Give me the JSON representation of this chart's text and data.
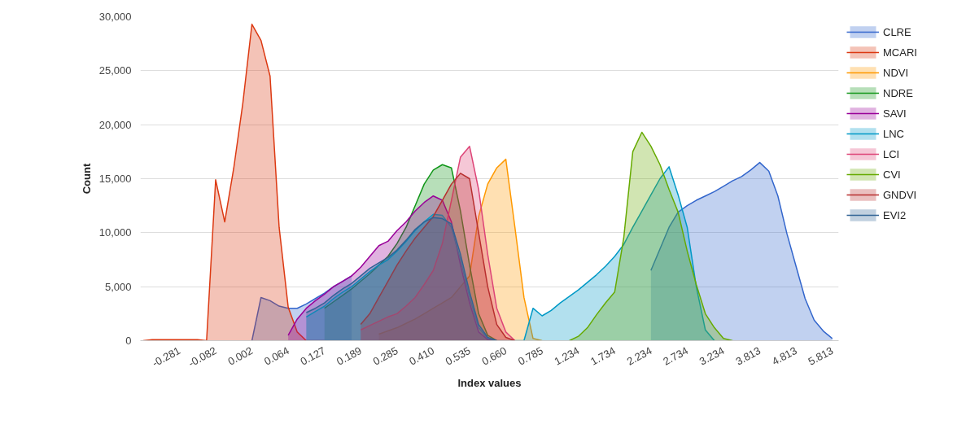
{
  "chart_data": {
    "type": "area",
    "xlabel": "Index values",
    "ylabel": "Count",
    "categories": [
      null,
      null,
      null,
      null,
      "-0.281",
      null,
      null,
      null,
      "-0.082",
      null,
      null,
      null,
      "0.002",
      null,
      null,
      null,
      "0.064",
      null,
      null,
      null,
      "0.127",
      null,
      null,
      null,
      "0.189",
      null,
      null,
      null,
      "0.285",
      null,
      null,
      null,
      "0.410",
      null,
      null,
      null,
      "0.535",
      null,
      null,
      null,
      "0.660",
      null,
      null,
      null,
      "0.785",
      null,
      null,
      null,
      "1.234",
      null,
      null,
      null,
      "1.734",
      null,
      null,
      null,
      "2.234",
      null,
      null,
      null,
      "2.734",
      null,
      null,
      null,
      "3.234",
      null,
      null,
      null,
      "3.813",
      null,
      null,
      null,
      "4.813",
      null,
      null,
      null,
      "5.813"
    ],
    "ylim": [
      0,
      30000
    ],
    "yticks": [
      0,
      {
        "value": 5000,
        "label": "5,000"
      },
      {
        "value": 10000,
        "label": "10,000"
      },
      {
        "value": 15000,
        "label": "15,000"
      },
      {
        "value": 20000,
        "label": "20,000"
      },
      {
        "value": 25000,
        "label": "25,000"
      },
      {
        "value": 30000,
        "label": "30,000"
      }
    ],
    "grid": "y",
    "legend": "right",
    "series": [
      {
        "name": "CLRE",
        "color": "#3366cc",
        "values": [
          null,
          null,
          null,
          null,
          null,
          null,
          null,
          null,
          null,
          null,
          null,
          null,
          0,
          4000,
          3700,
          3200,
          3000,
          3000,
          3400,
          3900,
          4400,
          5000,
          5500,
          6000,
          null,
          null,
          null,
          null,
          null,
          null,
          null,
          null,
          null,
          null,
          null,
          null,
          null,
          null,
          null,
          null,
          null,
          null,
          null,
          null,
          null,
          null,
          null,
          null,
          null,
          null,
          null,
          null,
          null,
          null,
          null,
          null,
          6500,
          8500,
          10500,
          11900,
          12500,
          13000,
          13400,
          13800,
          14300,
          14800,
          15200,
          15800,
          16500,
          15700,
          13400,
          9900,
          6900,
          3900,
          1900,
          900,
          200
        ]
      },
      {
        "name": "MCARI",
        "color": "#dc3912",
        "values": [
          0,
          100,
          100,
          100,
          100,
          100,
          100,
          0,
          14900,
          11000,
          16000,
          22000,
          29300,
          27800,
          24500,
          10500,
          3100,
          800,
          0,
          0,
          0,
          null,
          null,
          null,
          null,
          null,
          null,
          null,
          null,
          null,
          null,
          null,
          null,
          null,
          null,
          null,
          null,
          null,
          null,
          null,
          null,
          null,
          null,
          null,
          null,
          null,
          null,
          null,
          null,
          null,
          null,
          null,
          null,
          null,
          null,
          null,
          null,
          null,
          null,
          null,
          null,
          null,
          null,
          null,
          null,
          null,
          null,
          null,
          null,
          null,
          null,
          null,
          null,
          null,
          null,
          null,
          null
        ]
      },
      {
        "name": "NDVI",
        "color": "#ff9900",
        "values": [
          null,
          null,
          null,
          null,
          null,
          null,
          null,
          null,
          null,
          null,
          null,
          null,
          null,
          null,
          null,
          null,
          null,
          null,
          null,
          null,
          null,
          null,
          null,
          null,
          null,
          null,
          600,
          900,
          1200,
          1600,
          2000,
          2500,
          3000,
          3500,
          4000,
          5000,
          6000,
          11500,
          14500,
          16000,
          16800,
          10500,
          4000,
          200,
          0,
          null,
          null,
          null,
          null,
          null,
          null,
          null,
          null,
          null,
          null,
          null,
          null,
          null,
          null,
          null,
          null,
          null,
          null,
          null,
          null,
          null,
          null,
          null,
          null,
          null,
          null,
          null,
          null,
          null,
          null,
          null,
          null
        ]
      },
      {
        "name": "NDRE",
        "color": "#109618",
        "values": [
          null,
          null,
          null,
          null,
          null,
          null,
          null,
          null,
          null,
          null,
          null,
          null,
          null,
          null,
          null,
          null,
          null,
          null,
          null,
          null,
          3000,
          3600,
          4200,
          4800,
          5500,
          6200,
          7000,
          7800,
          9000,
          10500,
          12500,
          14500,
          15800,
          16300,
          16000,
          12000,
          7000,
          2500,
          500,
          0,
          null,
          null,
          null,
          null,
          null,
          null,
          null,
          null,
          null,
          null,
          null,
          null,
          null,
          null,
          null,
          null,
          null,
          null,
          null,
          null,
          null,
          null,
          null,
          null,
          null,
          null,
          null,
          null,
          null,
          null,
          null,
          null,
          null,
          null,
          null,
          null,
          null
        ]
      },
      {
        "name": "SAVI",
        "color": "#990099",
        "values": [
          null,
          null,
          null,
          null,
          null,
          null,
          null,
          null,
          null,
          null,
          null,
          null,
          null,
          null,
          null,
          null,
          500,
          2000,
          3000,
          3700,
          4300,
          5000,
          5500,
          6000,
          6800,
          7800,
          8800,
          9200,
          10200,
          11000,
          12000,
          12800,
          13400,
          13000,
          11000,
          7000,
          3500,
          800,
          100,
          0,
          null,
          null,
          null,
          null,
          null,
          null,
          null,
          null,
          null,
          null,
          null,
          null,
          null,
          null,
          null,
          null,
          null,
          null,
          null,
          null,
          null,
          null,
          null,
          null,
          null,
          null,
          null,
          null,
          null,
          null,
          null,
          null,
          null,
          null,
          null,
          null,
          null
        ]
      },
      {
        "name": "LNC",
        "color": "#0099c6",
        "values": [
          null,
          null,
          null,
          null,
          null,
          null,
          null,
          null,
          null,
          null,
          null,
          null,
          null,
          null,
          null,
          null,
          null,
          null,
          2200,
          2700,
          3200,
          3900,
          4500,
          5000,
          5700,
          6400,
          7000,
          7500,
          8300,
          9200,
          10200,
          11000,
          11700,
          11600,
          10500,
          7500,
          4000,
          1200,
          200,
          0,
          0,
          0,
          0,
          3000,
          2300,
          2800,
          3500,
          4100,
          4700,
          5400,
          6100,
          6900,
          7800,
          8900,
          10500,
          12000,
          13500,
          15000,
          16100,
          13500,
          10500,
          5000,
          1000,
          0,
          null,
          null,
          null,
          null,
          null,
          null,
          null,
          null,
          null,
          null,
          null,
          null,
          null
        ]
      },
      {
        "name": "LCI",
        "color": "#dd4477",
        "values": [
          null,
          null,
          null,
          null,
          null,
          null,
          null,
          null,
          null,
          null,
          null,
          null,
          null,
          null,
          null,
          null,
          null,
          null,
          null,
          null,
          null,
          null,
          null,
          null,
          1000,
          1400,
          1800,
          2200,
          2500,
          3200,
          4000,
          5200,
          6500,
          9000,
          13000,
          17000,
          18000,
          14000,
          8000,
          3000,
          800,
          0,
          null,
          null,
          null,
          null,
          null,
          null,
          null,
          null,
          null,
          null,
          null,
          null,
          null,
          null,
          null,
          null,
          null,
          null,
          null,
          null,
          null,
          null,
          null,
          null,
          null,
          null,
          null,
          null,
          null,
          null,
          null,
          null,
          null,
          null,
          null
        ]
      },
      {
        "name": "CVI",
        "color": "#66aa00",
        "values": [
          null,
          null,
          null,
          null,
          null,
          null,
          null,
          null,
          null,
          null,
          null,
          null,
          null,
          null,
          null,
          null,
          null,
          null,
          null,
          null,
          null,
          null,
          null,
          null,
          null,
          null,
          null,
          null,
          null,
          null,
          null,
          null,
          null,
          null,
          null,
          null,
          null,
          null,
          null,
          null,
          null,
          null,
          null,
          null,
          null,
          null,
          null,
          0,
          400,
          1200,
          2400,
          3500,
          4500,
          9500,
          17500,
          19300,
          18000,
          16300,
          14000,
          11900,
          8300,
          5200,
          2500,
          1200,
          200,
          0,
          null,
          null,
          null,
          null,
          null,
          null,
          null,
          null,
          null,
          null,
          null
        ]
      },
      {
        "name": "GNDVI",
        "color": "#b82e2e",
        "values": [
          null,
          null,
          null,
          null,
          null,
          null,
          null,
          null,
          null,
          null,
          null,
          null,
          null,
          null,
          null,
          null,
          null,
          null,
          null,
          null,
          null,
          null,
          null,
          null,
          1500,
          2500,
          4000,
          5500,
          7000,
          8300,
          9500,
          10500,
          11500,
          13000,
          14500,
          15500,
          15000,
          10000,
          5000,
          1500,
          300,
          0,
          null,
          null,
          null,
          null,
          null,
          null,
          null,
          null,
          null,
          null,
          null,
          null,
          null,
          null,
          null,
          null,
          null,
          null,
          null,
          null,
          null,
          null,
          null,
          null,
          null,
          null,
          null,
          null,
          null,
          null,
          null,
          null,
          null,
          null,
          null
        ]
      },
      {
        "name": "EVI2",
        "color": "#316395",
        "values": [
          null,
          null,
          null,
          null,
          null,
          null,
          null,
          null,
          null,
          null,
          null,
          null,
          null,
          null,
          null,
          null,
          null,
          null,
          2600,
          3000,
          3500,
          4200,
          4800,
          5300,
          6000,
          6700,
          7200,
          7700,
          8400,
          9300,
          10300,
          11000,
          11400,
          11300,
          10800,
          8000,
          4500,
          1500,
          300,
          0,
          null,
          null,
          null,
          null,
          null,
          null,
          null,
          null,
          null,
          null,
          null,
          null,
          null,
          null,
          null,
          null,
          null,
          null,
          null,
          null,
          null,
          null,
          null,
          null,
          null,
          null,
          null,
          null,
          null,
          null,
          null,
          null,
          null,
          null,
          null,
          null,
          null
        ]
      }
    ]
  }
}
